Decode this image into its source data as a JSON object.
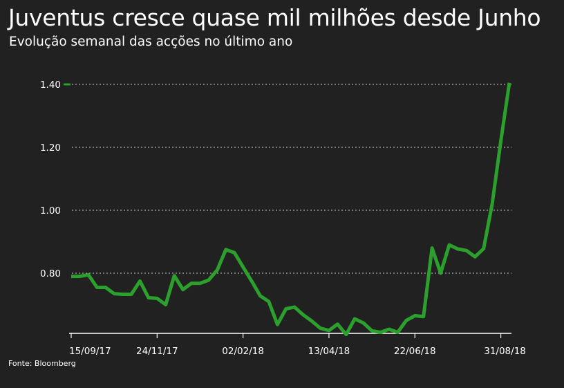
{
  "title": "Juventus cresce quase mil milhões desde Junho",
  "subtitle": "Evolução semanal das acções no último ano",
  "source": "Fonte: Bloomberg",
  "colors": {
    "background": "#212121",
    "line": "#2ca02c",
    "text": "#ffffff",
    "grid": "#cccccc"
  },
  "chart_data": {
    "type": "line",
    "title": "Juventus cresce quase mil milhões desde Junho",
    "subtitle": "Evolução semanal das acções no último ano",
    "xlabel": "",
    "ylabel": "",
    "ylim": [
      0.62,
      1.42
    ],
    "y_ticks": [
      0.8,
      1.0,
      1.2,
      1.4
    ],
    "y_tick_labels": [
      "0.80",
      "1.00",
      "1.20",
      "1.40"
    ],
    "grid": "horizontal dotted",
    "legend": "none",
    "x_tick_labels": [
      "15/09/17",
      "24/11/17",
      "02/02/18",
      "13/04/18",
      "22/06/18",
      "31/08/18"
    ],
    "x_tick_weeks": [
      0,
      10,
      20,
      30,
      40,
      50
    ],
    "series": [
      {
        "values": [
          0.79,
          0.79,
          0.795,
          0.755,
          0.755,
          0.735,
          0.733,
          0.733,
          0.775,
          0.722,
          0.72,
          0.7,
          0.792,
          0.748,
          0.768,
          0.768,
          0.778,
          0.81,
          0.875,
          0.865,
          0.82,
          0.775,
          0.728,
          0.71,
          0.637,
          0.687,
          0.692,
          0.668,
          0.648,
          0.625,
          0.618,
          0.638,
          0.605,
          0.655,
          0.642,
          0.617,
          0.612,
          0.622,
          0.612,
          0.65,
          0.665,
          0.662,
          0.88,
          0.8,
          0.89,
          0.877,
          0.872,
          0.852,
          0.878,
          1.02,
          1.22,
          1.405
        ]
      }
    ]
  }
}
